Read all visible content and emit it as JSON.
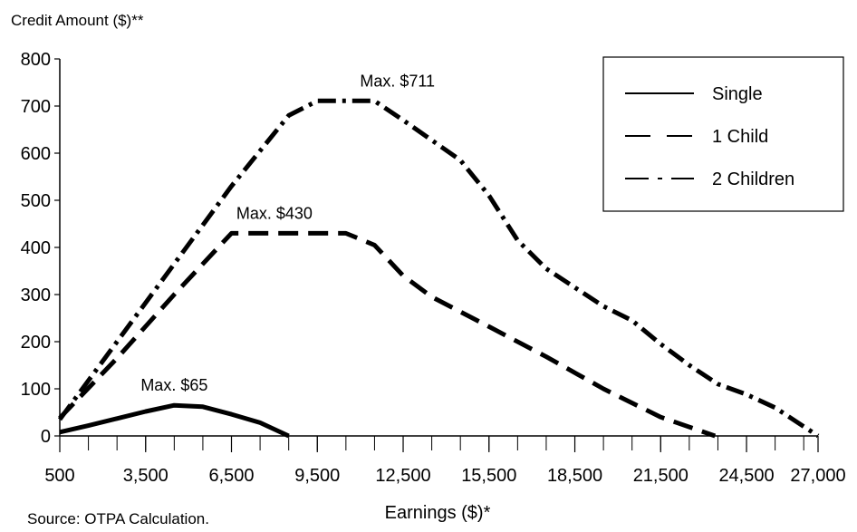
{
  "chart_data": {
    "type": "line",
    "ylabel": "Credit Amount ($)**",
    "xlabel": "Earnings ($)*",
    "source": "Source: OTPA Calculation.",
    "xlim": [
      500,
      27000
    ],
    "ylim": [
      0,
      800
    ],
    "x_ticks": [
      500,
      3500,
      6500,
      9500,
      12500,
      15500,
      18500,
      21500,
      24500,
      27000
    ],
    "x_tick_labels": [
      "500",
      "3,500",
      "6,500",
      "9,500",
      "12,500",
      "15,500",
      "18,500",
      "21,500",
      "24,500",
      "27,000"
    ],
    "minor_ticks_step": 1000,
    "y_ticks": [
      0,
      100,
      200,
      300,
      400,
      500,
      600,
      700,
      800
    ],
    "y_tick_labels": [
      "0",
      "100",
      "200",
      "300",
      "400",
      "500",
      "600",
      "700",
      "800"
    ],
    "grid": false,
    "legend_position": "top-right",
    "series": [
      {
        "name": "Single",
        "style": "solid",
        "color": "#000000",
        "points": [
          [
            500,
            8
          ],
          [
            1500,
            22
          ],
          [
            2500,
            37
          ],
          [
            3500,
            52
          ],
          [
            4500,
            65
          ],
          [
            5500,
            62
          ],
          [
            6500,
            46
          ],
          [
            7500,
            28
          ],
          [
            8500,
            0
          ]
        ]
      },
      {
        "name": "1 Child",
        "style": "dash",
        "color": "#000000",
        "points": [
          [
            500,
            38
          ],
          [
            2500,
            165
          ],
          [
            4500,
            300
          ],
          [
            6500,
            430
          ],
          [
            10500,
            430
          ],
          [
            11500,
            405
          ],
          [
            12500,
            340
          ],
          [
            13500,
            295
          ],
          [
            15500,
            232
          ],
          [
            17500,
            168
          ],
          [
            19500,
            100
          ],
          [
            21500,
            40
          ],
          [
            23400,
            0
          ]
        ]
      },
      {
        "name": "2 Children",
        "style": "dashdot",
        "color": "#000000",
        "points": [
          [
            500,
            35
          ],
          [
            2500,
            200
          ],
          [
            4500,
            365
          ],
          [
            6500,
            530
          ],
          [
            8500,
            680
          ],
          [
            9500,
            711
          ],
          [
            11500,
            711
          ],
          [
            12500,
            670
          ],
          [
            14500,
            585
          ],
          [
            15500,
            510
          ],
          [
            16500,
            415
          ],
          [
            17500,
            355
          ],
          [
            19500,
            275
          ],
          [
            20500,
            245
          ],
          [
            21500,
            195
          ],
          [
            22500,
            150
          ],
          [
            23500,
            110
          ],
          [
            24500,
            88
          ],
          [
            25500,
            60
          ],
          [
            26500,
            20
          ],
          [
            27000,
            0
          ]
        ]
      }
    ],
    "annotations": [
      {
        "text": "Max. $65",
        "x": 4500,
        "y": 65
      },
      {
        "text": "Max. $430",
        "x": 8000,
        "y": 430
      },
      {
        "text": "Max. $711",
        "x": 12300,
        "y": 711
      }
    ]
  }
}
